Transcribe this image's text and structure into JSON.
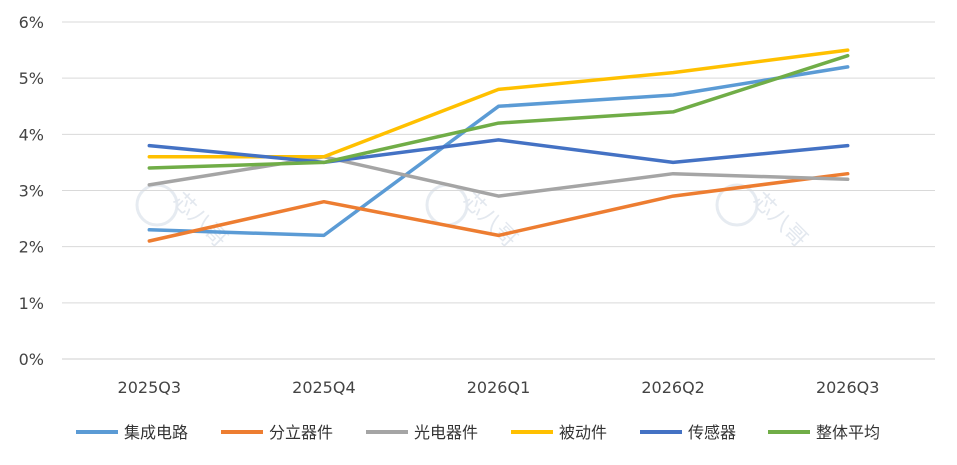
{
  "chart_data": {
    "type": "line",
    "title": "",
    "xlabel": "",
    "ylabel": "",
    "categories": [
      "2025Q3",
      "2025Q4",
      "2026Q1",
      "2026Q2",
      "2026Q3"
    ],
    "ylim": [
      0,
      6
    ],
    "yticks": [
      "0%",
      "1%",
      "2%",
      "3%",
      "4%",
      "5%",
      "6%"
    ],
    "grid": true,
    "legend_position": "bottom",
    "series": [
      {
        "name": "集成电路",
        "color": "#5b9bd5",
        "values": [
          2.3,
          2.2,
          4.5,
          4.7,
          5.2
        ]
      },
      {
        "name": "分立器件",
        "color": "#ed7d31",
        "values": [
          2.1,
          2.8,
          2.2,
          2.9,
          3.3
        ]
      },
      {
        "name": "光电器件",
        "color": "#a5a5a5",
        "values": [
          3.1,
          3.6,
          2.9,
          3.3,
          3.2
        ]
      },
      {
        "name": "被动件",
        "color": "#ffc000",
        "values": [
          3.6,
          3.6,
          4.8,
          5.1,
          5.5
        ]
      },
      {
        "name": "传感器",
        "color": "#4472c4",
        "values": [
          3.8,
          3.5,
          3.9,
          3.5,
          3.8
        ]
      },
      {
        "name": "整体平均",
        "color": "#70ad47",
        "values": [
          3.4,
          3.5,
          4.2,
          4.4,
          5.4
        ]
      }
    ]
  },
  "watermark": "芯八哥"
}
